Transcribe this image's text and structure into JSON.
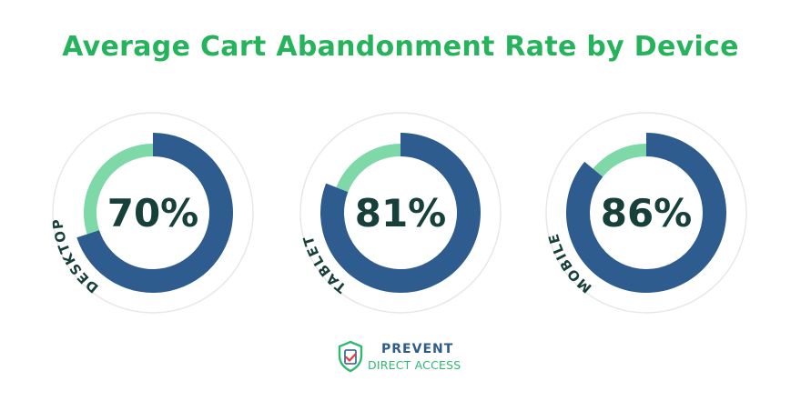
{
  "chart_data": {
    "type": "donut",
    "title": "Average Cart Abandonment Rate by Device",
    "categories": [
      "DESKTOP",
      "TABLET",
      "MOBILE"
    ],
    "values": [
      70,
      81,
      86
    ],
    "value_labels": [
      "70%",
      "81%",
      "86%"
    ],
    "unit": "%",
    "ylim": [
      0,
      100
    ],
    "colors": {
      "value": "#2e5c8f",
      "remainder": "#7fd8a8",
      "title": "#25b35b",
      "label_text": "#17403a",
      "outer_ring": "#e6e6e6"
    }
  },
  "logo": {
    "line1": "PREVENT",
    "line2": "DIRECT ACCESS",
    "icon": "shield-check-icon",
    "colors": {
      "line1": "#2e5c8a",
      "line2": "#2eb872"
    }
  }
}
